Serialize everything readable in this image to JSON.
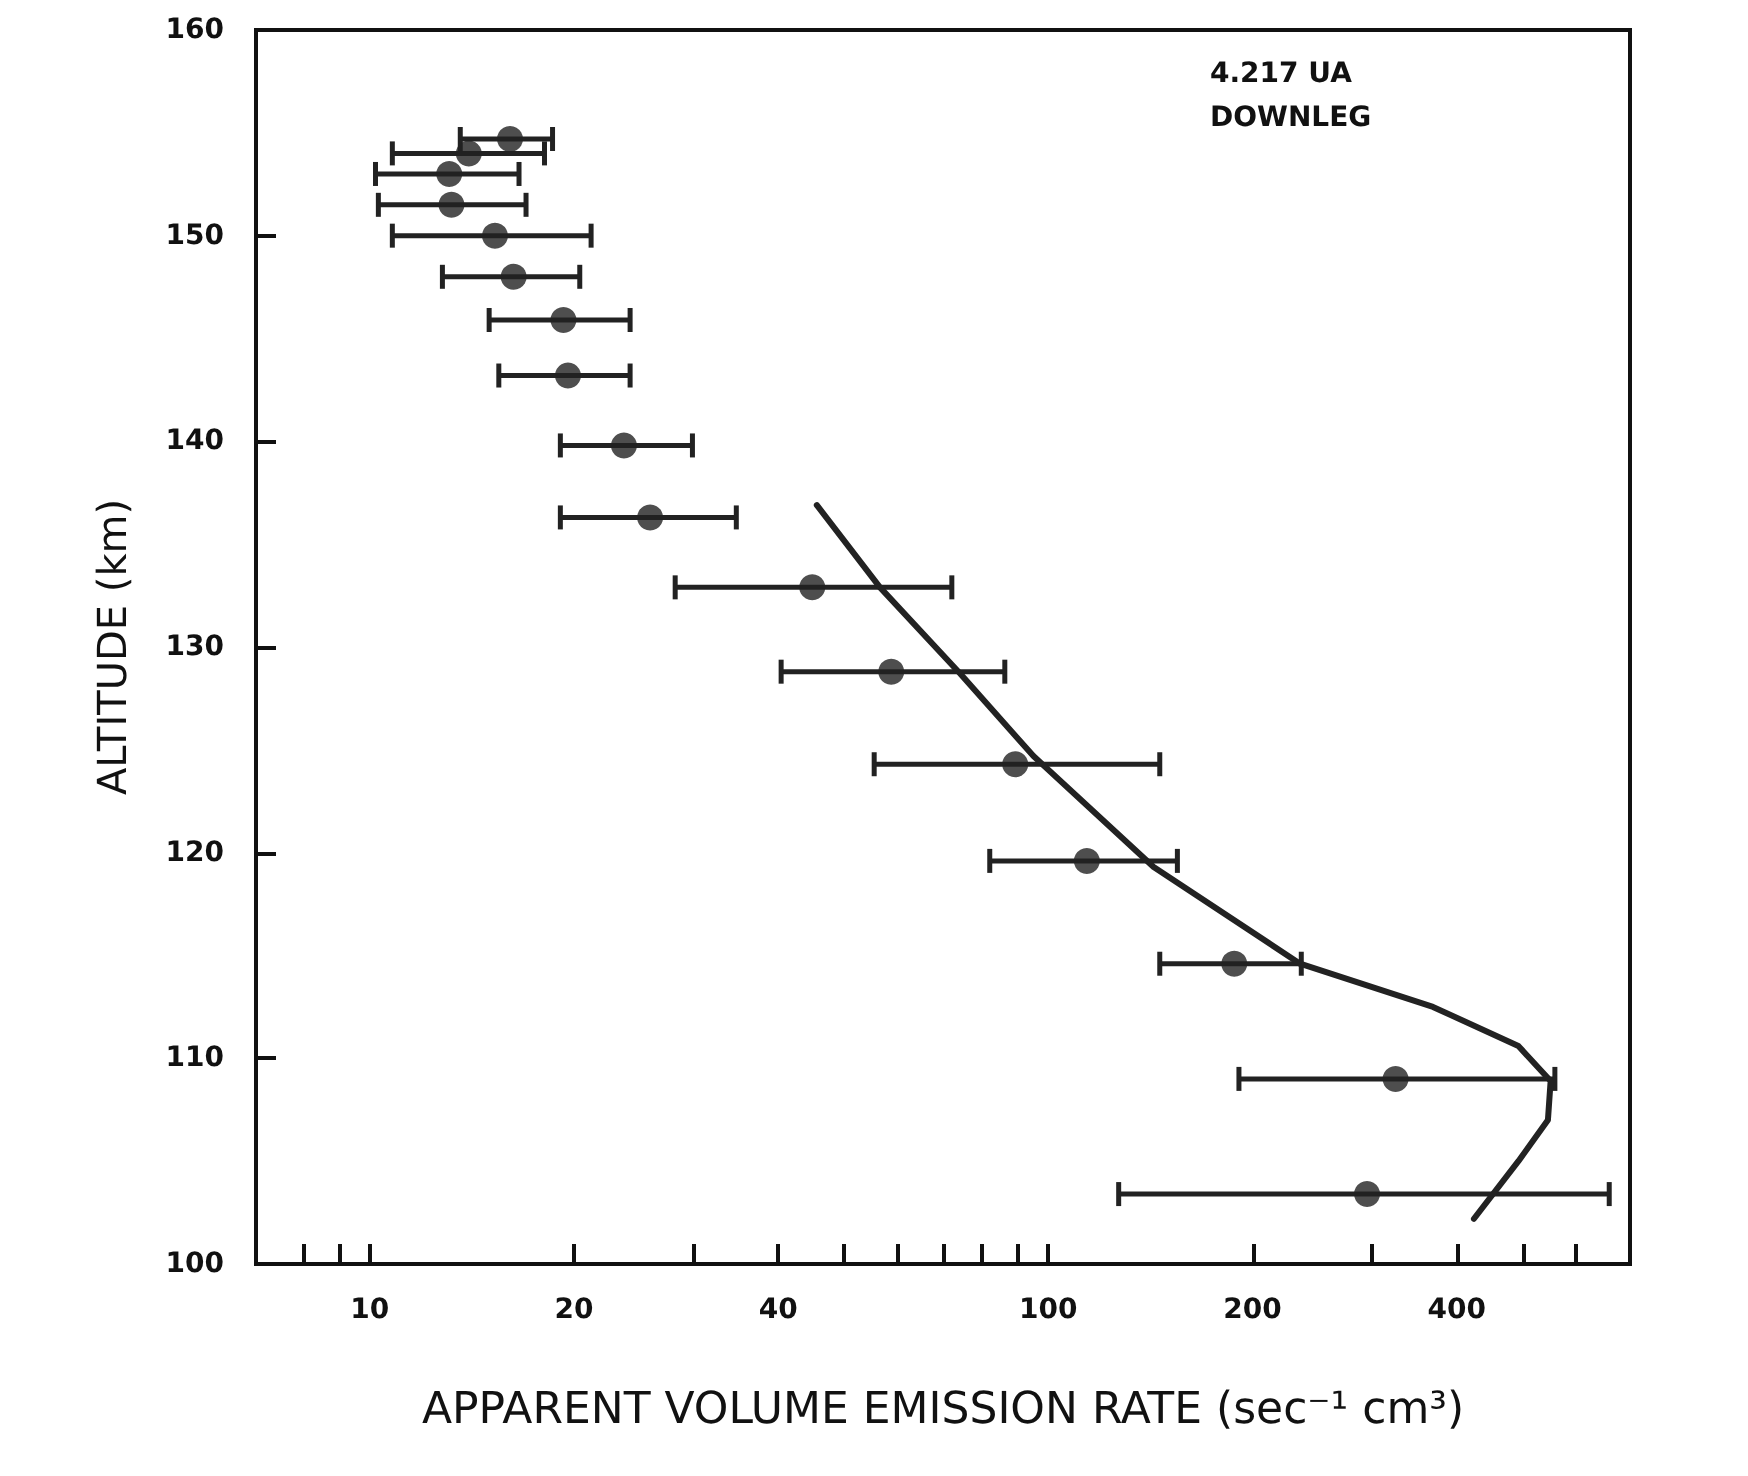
{
  "chart_data": {
    "type": "scatter",
    "xlabel": "APPARENT VOLUME EMISSION RATE (sec⁻¹ cm³)",
    "ylabel": "ALTITUDE (km)",
    "annotations": [
      "4.217 UA",
      "DOWNLEG"
    ],
    "log": "x",
    "xlim": [
      6.8,
      720
    ],
    "xticks": [
      {
        "value": 8,
        "label": null
      },
      {
        "value": 9,
        "label": null
      },
      10,
      20,
      {
        "value": 30,
        "label": null
      },
      40,
      {
        "value": 50,
        "label": null
      },
      {
        "value": 60,
        "label": null
      },
      {
        "value": 70,
        "label": null
      },
      {
        "value": 80,
        "label": null
      },
      {
        "value": 90,
        "label": null
      },
      100,
      200,
      {
        "value": 300,
        "label": null
      },
      400,
      {
        "value": 500,
        "label": null
      },
      {
        "value": 600,
        "label": null
      }
    ],
    "ylim": [
      100,
      160
    ],
    "yticks": [
      100,
      110,
      120,
      130,
      140,
      150,
      160
    ],
    "grid": false,
    "series": [
      {
        "marker": "circle",
        "color": "#222222",
        "x": [
          16.1,
          14.0,
          13.1,
          13.2,
          15.3,
          16.3,
          19.3,
          19.6,
          23.7,
          25.9,
          44.9,
          58.7,
          89.4,
          114,
          188,
          325,
          295
        ],
        "values": [
          154.7,
          154.0,
          153.0,
          151.5,
          150.0,
          148.0,
          145.9,
          143.2,
          139.8,
          136.3,
          132.9,
          128.8,
          124.3,
          119.6,
          114.6,
          109.0,
          103.4
        ],
        "xerrors": [
          [
            13.6,
            18.6
          ],
          [
            10.8,
            18.1
          ],
          [
            10.2,
            16.6
          ],
          [
            10.3,
            17.0
          ],
          [
            10.8,
            21.2
          ],
          [
            12.8,
            20.4
          ],
          [
            15.0,
            24.2
          ],
          [
            15.5,
            24.2
          ],
          [
            19.1,
            29.9
          ],
          [
            19.1,
            34.7
          ],
          [
            28.2,
            72.1
          ],
          [
            40.4,
            86.3
          ],
          [
            55.4,
            146
          ],
          [
            82.0,
            155
          ],
          [
            146,
            236
          ],
          [
            191,
            558
          ],
          [
            127,
            671
          ]
        ]
      },
      {
        "type": "line",
        "marker": "none",
        "line_style": "solid",
        "color": "#222222",
        "x": [
          45.6,
          56.5,
          74.2,
          95.1,
          143,
          235,
          369,
          493,
          550,
          545,
          493,
          424
        ],
        "values": [
          136.9,
          132.9,
          128.7,
          124.7,
          119.3,
          114.6,
          112.5,
          110.6,
          108.9,
          107.0,
          105.0,
          102.2
        ]
      }
    ]
  }
}
